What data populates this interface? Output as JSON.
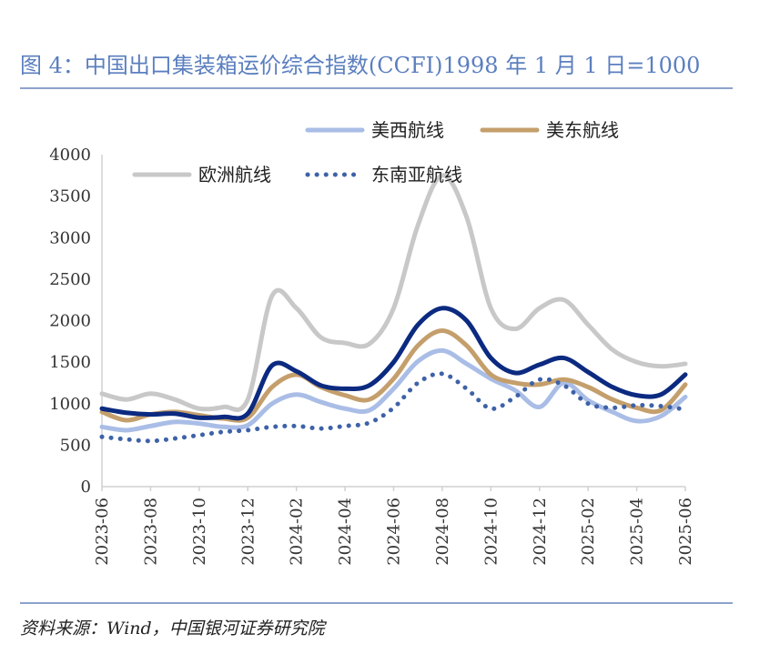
{
  "title": "图 4：中国出口集装箱运价综合指数(CCFI)1998 年 1 月 1 日=1000",
  "source": "资料来源：Wind，中国银河证券研究院",
  "chart_data": {
    "type": "line",
    "title": "图 4：中国出口集装箱运价综合指数(CCFI)1998 年 1 月 1 日=1000",
    "xlabel": "",
    "ylabel": "",
    "ylim": [
      0,
      4000
    ],
    "yticks": [
      0,
      500,
      1000,
      1500,
      2000,
      2500,
      3000,
      3500,
      4000
    ],
    "xticks": [
      "2023-06",
      "2023-08",
      "2023-10",
      "2023-12",
      "2024-02",
      "2024-04",
      "2024-06",
      "2024-08",
      "2024-10",
      "2024-12",
      "2025-02",
      "2025-04",
      "2025-06"
    ],
    "x": [
      "2023-06",
      "2023-07",
      "2023-08",
      "2023-09",
      "2023-10",
      "2023-11",
      "2023-12",
      "2024-01",
      "2024-02",
      "2024-03",
      "2024-04",
      "2024-05",
      "2024-06",
      "2024-07",
      "2024-08",
      "2024-09",
      "2024-10",
      "2024-11",
      "2024-12",
      "2025-01",
      "2025-02",
      "2025-03",
      "2025-04",
      "2025-05",
      "2025-06"
    ],
    "grid": false,
    "legend": "top",
    "series": [
      {
        "name": "",
        "color": "#0b2a80",
        "style": "solid",
        "width": 5,
        "values": [
          940,
          890,
          870,
          880,
          830,
          840,
          880,
          1460,
          1390,
          1220,
          1180,
          1220,
          1500,
          1950,
          2150,
          2000,
          1550,
          1370,
          1470,
          1550,
          1380,
          1200,
          1100,
          1110,
          1350
        ]
      },
      {
        "name": "美西航线",
        "color": "#a9bde6",
        "style": "solid",
        "width": 5,
        "values": [
          720,
          680,
          730,
          780,
          760,
          720,
          740,
          1000,
          1110,
          1020,
          940,
          920,
          1180,
          1510,
          1640,
          1480,
          1300,
          1160,
          960,
          1250,
          1040,
          900,
          790,
          850,
          1080
        ]
      },
      {
        "name": "美东航线",
        "color": "#c49f6c",
        "style": "solid",
        "width": 5,
        "values": [
          900,
          800,
          870,
          900,
          860,
          820,
          830,
          1200,
          1350,
          1200,
          1100,
          1050,
          1300,
          1700,
          1880,
          1700,
          1350,
          1250,
          1230,
          1290,
          1200,
          1050,
          950,
          920,
          1230
        ]
      },
      {
        "name": "欧洲航线",
        "color": "#c8c8c8",
        "style": "solid",
        "width": 5,
        "values": [
          1120,
          1050,
          1120,
          1050,
          940,
          960,
          1050,
          2300,
          2150,
          1800,
          1730,
          1720,
          2150,
          3150,
          3750,
          3250,
          2150,
          1900,
          2150,
          2250,
          1950,
          1650,
          1500,
          1450,
          1480
        ]
      },
      {
        "name": "东南亚航线",
        "color": "#3e62a8",
        "style": "dotted",
        "width": 5,
        "values": [
          600,
          570,
          550,
          580,
          620,
          660,
          680,
          720,
          730,
          700,
          730,
          770,
          950,
          1250,
          1360,
          1180,
          940,
          1080,
          1290,
          1220,
          1000,
          950,
          980,
          970,
          930
        ]
      }
    ]
  }
}
